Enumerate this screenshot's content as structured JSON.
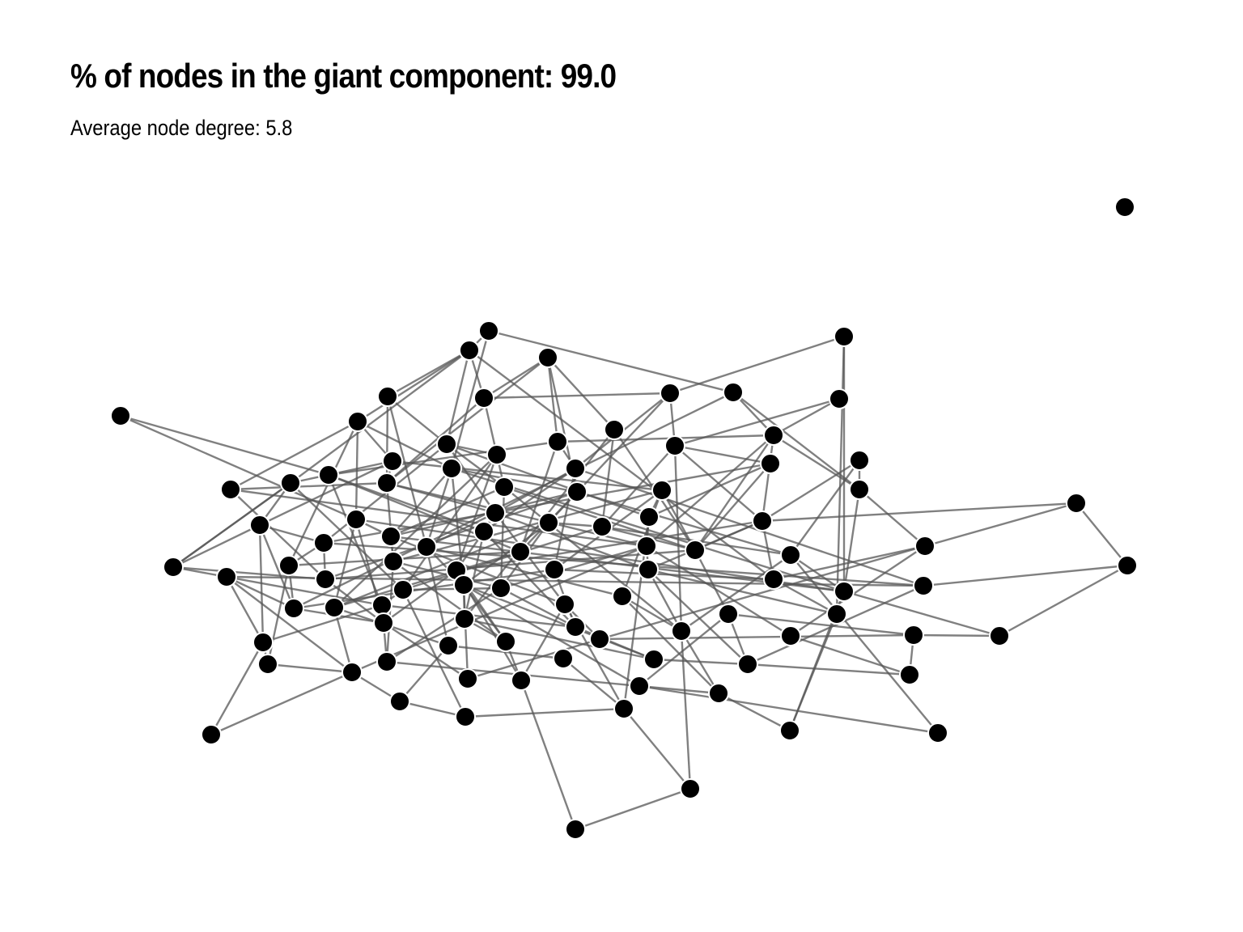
{
  "header": {
    "title": "% of nodes in the giant component: 99.0",
    "subtitle": "Average node degree: 5.8"
  },
  "colors": {
    "node_fill": "#000000",
    "node_stroke": "#ffffff",
    "edge": "#555555"
  }
}
